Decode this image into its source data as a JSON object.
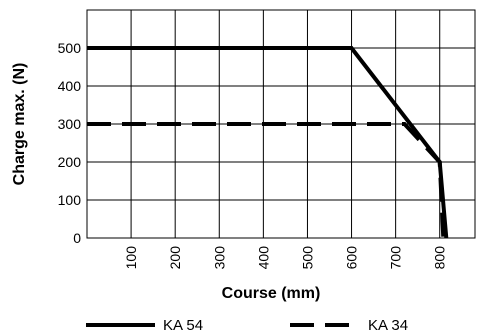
{
  "chart_data": {
    "type": "line",
    "title": "",
    "xlabel": "Course (mm)",
    "ylabel": "Charge max. (N)",
    "xlim": [
      0,
      880
    ],
    "ylim": [
      0,
      600
    ],
    "x_ticks": [
      100,
      200,
      300,
      400,
      500,
      600,
      700,
      800
    ],
    "y_ticks": [
      0,
      100,
      200,
      300,
      400,
      500
    ],
    "grid": true,
    "legend_position": "bottom",
    "series": [
      {
        "name": "KA 54",
        "style": "solid",
        "color": "#000000",
        "points": [
          [
            0,
            500
          ],
          [
            600,
            500
          ],
          [
            800,
            200
          ],
          [
            815,
            0
          ]
        ]
      },
      {
        "name": "KA 34",
        "style": "dashed",
        "color": "#000000",
        "points": [
          [
            0,
            300
          ],
          [
            720,
            300
          ],
          [
            800,
            200
          ],
          [
            808,
            0
          ]
        ]
      }
    ]
  }
}
